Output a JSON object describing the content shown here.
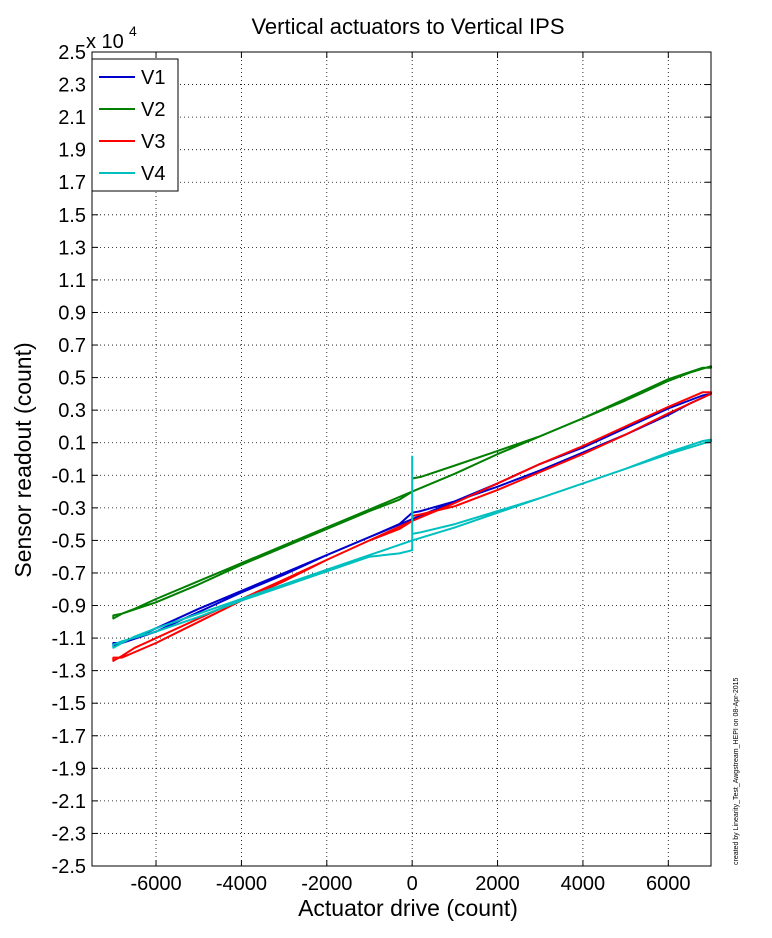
{
  "chart_data": {
    "type": "line",
    "title": "Vertical actuators to Vertical IPS",
    "xlabel": "Actuator drive (count)",
    "ylabel": "Sensor readout (count)",
    "y_exponent_label": "x 10",
    "y_exponent_power": "4",
    "xlim": [
      -7500,
      7000
    ],
    "ylim": [
      -2.5,
      2.5
    ],
    "y_scale_multiplier": 10000,
    "x_ticks": [
      -6000,
      -4000,
      -2000,
      0,
      2000,
      4000,
      6000
    ],
    "x_tick_labels": [
      "-6000",
      "-4000",
      "-2000",
      "0",
      "2000",
      "4000",
      "6000"
    ],
    "y_ticks": [
      2.5,
      2.3,
      2.1,
      1.9,
      1.7,
      1.5,
      1.3,
      1.1,
      0.9,
      0.7,
      0.5,
      0.3,
      0.1,
      -0.1,
      -0.3,
      -0.5,
      -0.7,
      -0.9,
      -1.1,
      -1.3,
      -1.5,
      -1.7,
      -1.9,
      -2.1,
      -2.3,
      -2.5
    ],
    "y_tick_labels": [
      "2.5",
      "2.3",
      "2.1",
      "1.9",
      "1.7",
      "1.5",
      "1.3",
      "1.1",
      "0.9",
      "0.7",
      "0.5",
      "0.3",
      "0.1",
      "-0.1",
      "-0.3",
      "-0.5",
      "-0.7",
      "-0.9",
      "-1.1",
      "-1.3",
      "-1.5",
      "-1.7",
      "-1.9",
      "-2.1",
      "-2.3",
      "-2.5"
    ],
    "grid": true,
    "legend_position": "top-left",
    "series": [
      {
        "name": "V1",
        "color": "#0000cc",
        "x": [
          0,
          200,
          1000,
          2000,
          3000,
          4000,
          5000,
          6000,
          6500,
          7000,
          7000,
          6800,
          6000,
          5000,
          4000,
          3000,
          2000,
          1000,
          0,
          -1000,
          -2000,
          -3000,
          -4000,
          -5000,
          -6000,
          -6500,
          -6800,
          -7000,
          -7000,
          -6800,
          -6000,
          -5000,
          -4000,
          -3000,
          -2000,
          -1000,
          -300,
          0
        ],
        "y": [
          -0.33,
          -0.32,
          -0.26,
          -0.17,
          -0.07,
          0.04,
          0.15,
          0.27,
          0.34,
          0.4,
          0.4,
          0.39,
          0.31,
          0.19,
          0.07,
          -0.03,
          -0.15,
          -0.26,
          -0.37,
          -0.48,
          -0.59,
          -0.7,
          -0.81,
          -0.92,
          -1.04,
          -1.1,
          -1.13,
          -1.15,
          -1.13,
          -1.13,
          -1.06,
          -0.94,
          -0.82,
          -0.71,
          -0.59,
          -0.48,
          -0.4,
          -0.33
        ]
      },
      {
        "name": "V2",
        "color": "#007f00",
        "x": [
          0,
          200,
          1000,
          2000,
          3000,
          4000,
          5000,
          6000,
          6500,
          7000,
          7000,
          6800,
          6000,
          5000,
          4000,
          3000,
          2000,
          1000,
          0,
          -1000,
          -2000,
          -3000,
          -4000,
          -5000,
          -6000,
          -6500,
          -6800,
          -7000,
          -7000,
          -6800,
          -6000,
          -5000,
          -4000,
          -3000,
          -2000,
          -1000,
          -300,
          0
        ],
        "y": [
          -0.12,
          -0.11,
          -0.04,
          0.05,
          0.14,
          0.25,
          0.36,
          0.48,
          0.53,
          0.57,
          0.56,
          0.56,
          0.49,
          0.37,
          0.25,
          0.14,
          0.03,
          -0.09,
          -0.2,
          -0.31,
          -0.42,
          -0.53,
          -0.64,
          -0.75,
          -0.86,
          -0.92,
          -0.95,
          -0.98,
          -0.96,
          -0.95,
          -0.88,
          -0.77,
          -0.65,
          -0.54,
          -0.43,
          -0.32,
          -0.25,
          -0.2
        ]
      },
      {
        "name": "V3",
        "color": "#ff0000",
        "x": [
          0,
          200,
          1000,
          2000,
          3000,
          4000,
          5000,
          6000,
          6500,
          7000,
          7000,
          6800,
          6000,
          5000,
          4000,
          3000,
          2000,
          1000,
          0,
          -1000,
          -2000,
          -3000,
          -4000,
          -5000,
          -6000,
          -6500,
          -6800,
          -7000,
          -7000,
          -6800,
          -6000,
          -5000,
          -4000,
          -3000,
          -2000,
          -1000,
          -300,
          0
        ],
        "y": [
          -0.35,
          -0.34,
          -0.29,
          -0.19,
          -0.08,
          0.03,
          0.15,
          0.28,
          0.34,
          0.4,
          0.41,
          0.41,
          0.32,
          0.2,
          0.08,
          -0.03,
          -0.15,
          -0.27,
          -0.38,
          -0.5,
          -0.62,
          -0.74,
          -0.86,
          -0.98,
          -1.1,
          -1.16,
          -1.21,
          -1.24,
          -1.22,
          -1.22,
          -1.13,
          -1.0,
          -0.87,
          -0.75,
          -0.62,
          -0.5,
          -0.43,
          -0.38
        ]
      },
      {
        "name": "V4",
        "color": "#00bfbf",
        "x": [
          0,
          200,
          1000,
          2000,
          3000,
          4000,
          5000,
          6000,
          6500,
          7000,
          7000,
          6800,
          6000,
          5000,
          4000,
          3000,
          2000,
          1000,
          0,
          -1000,
          -2000,
          -3000,
          -4000,
          -5000,
          -6000,
          -6500,
          -6800,
          -7000,
          -7000,
          -6800,
          -6000,
          -5000,
          -4000,
          -3000,
          -2000,
          -1000,
          -300,
          0,
          0
        ],
        "y": [
          -0.46,
          -0.45,
          -0.4,
          -0.32,
          -0.24,
          -0.15,
          -0.06,
          0.03,
          0.07,
          0.11,
          0.12,
          0.11,
          0.04,
          -0.06,
          -0.15,
          -0.24,
          -0.33,
          -0.42,
          -0.5,
          -0.59,
          -0.68,
          -0.77,
          -0.86,
          -0.95,
          -1.04,
          -1.09,
          -1.13,
          -1.16,
          -1.14,
          -1.12,
          -1.06,
          -0.97,
          -0.87,
          -0.78,
          -0.69,
          -0.6,
          -0.58,
          -0.56,
          0.02
        ]
      }
    ]
  },
  "side_note": "created by Linearity_Test_Awgstream_HEPI on 08-Apr-2015"
}
